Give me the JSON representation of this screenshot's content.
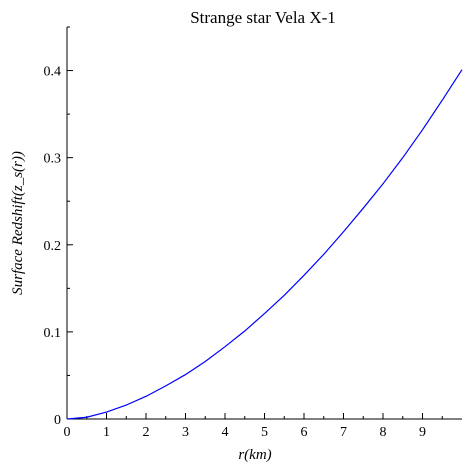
{
  "chart_data": {
    "type": "line",
    "title": "Strange star Vela X-1",
    "xlabel": "r(km)",
    "ylabel": "Surface Redshift(z_s(r))",
    "xlim": [
      0,
      10
    ],
    "ylim": [
      0,
      0.45
    ],
    "x_ticks": [
      "0",
      "1",
      "2",
      "3",
      "4",
      "5",
      "6",
      "7",
      "8",
      "9"
    ],
    "y_ticks": [
      "0",
      "0.1",
      "0.2",
      "0.3",
      "0.4"
    ],
    "grid": false,
    "series": [
      {
        "color": "#0000ff",
        "x": [
          0,
          0.5,
          1,
          1.5,
          2,
          2.5,
          3,
          3.5,
          4,
          4.5,
          5,
          5.5,
          6,
          6.5,
          7,
          7.5,
          8,
          8.5,
          9,
          9.5,
          10
        ],
        "y": [
          0,
          0.002,
          0.008,
          0.016,
          0.026,
          0.038,
          0.051,
          0.066,
          0.083,
          0.101,
          0.121,
          0.142,
          0.165,
          0.189,
          0.215,
          0.242,
          0.27,
          0.3,
          0.332,
          0.366,
          0.401
        ]
      }
    ]
  }
}
